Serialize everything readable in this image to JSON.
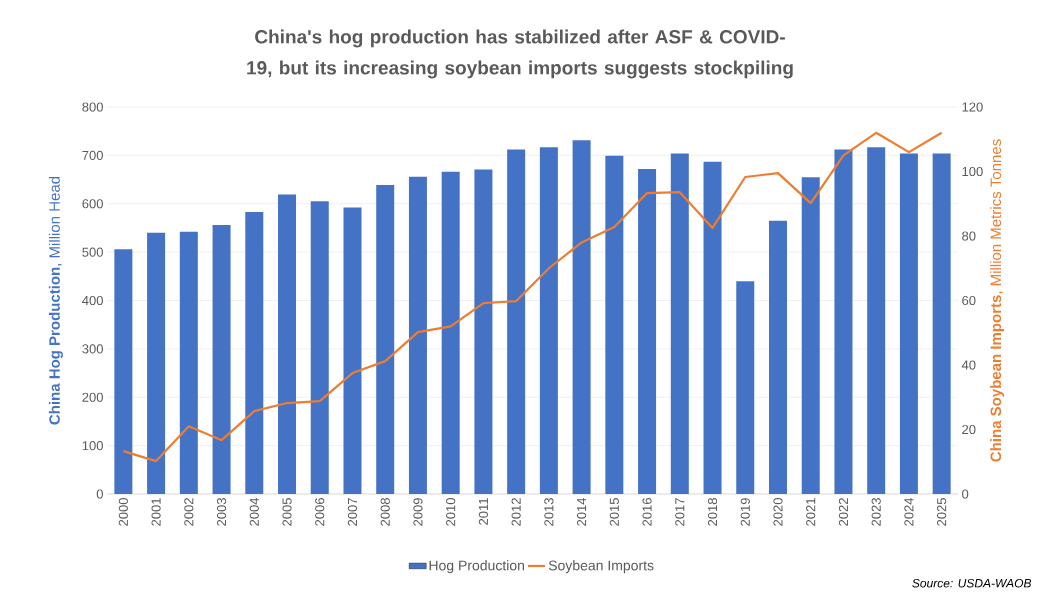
{
  "chart_data": {
    "type": "bar",
    "title": "China's hog production has stabilized after ASF & COVID-19, but its increasing soybean imports suggests stockpiling",
    "categories": [
      "2000",
      "2001",
      "2002",
      "2003",
      "2004",
      "2005",
      "2006",
      "2007",
      "2008",
      "2009",
      "2010",
      "2011",
      "2012",
      "2013",
      "2014",
      "2015",
      "2016",
      "2017",
      "2018",
      "2019",
      "2020",
      "2021",
      "2022",
      "2023",
      "2024",
      "2025"
    ],
    "series": [
      {
        "name": "Hog Production",
        "color": "#4472c4",
        "values": [
          506,
          540,
          542,
          556,
          583,
          619,
          605,
          592,
          639,
          656,
          666,
          671,
          712,
          717,
          731,
          699,
          672,
          704,
          687,
          440,
          565,
          655,
          712,
          717,
          704,
          704
        ]
      },
      {
        "name": "Soybean Imports",
        "type": "line",
        "axis": "y2",
        "color": "#ed7d31",
        "values": [
          13.3,
          10.2,
          21,
          16.7,
          25.7,
          28.2,
          28.8,
          37.5,
          41.2,
          50.2,
          52,
          59.2,
          59.8,
          70,
          78,
          82.8,
          93.3,
          93.6,
          82.5,
          98.3,
          99.5,
          90.2,
          105,
          112,
          106,
          112
        ]
      }
    ],
    "ylabel": "**China Hog Production**, Million Head",
    "y2label": "**China Soybean Imports**, Million Metrics Tonnes",
    "ylim": [
      0,
      800
    ],
    "yticks": [
      0,
      100,
      200,
      300,
      400,
      500,
      600,
      700,
      800
    ],
    "y2lim": [
      0,
      120
    ],
    "y2ticks": [
      0,
      20,
      40,
      60,
      80,
      100,
      120
    ],
    "grid": "y",
    "legend": "bottom",
    "annotations": [
      "Source: USDA-WAOB"
    ]
  }
}
